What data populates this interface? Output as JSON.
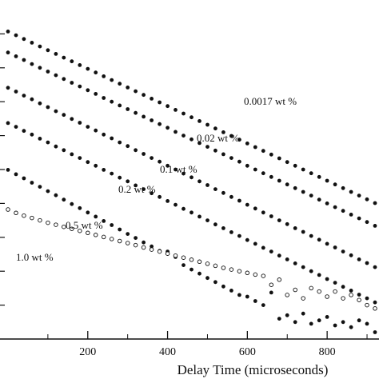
{
  "chart_data": {
    "type": "scatter",
    "title": "",
    "xlabel": "Delay Time (microseconds)",
    "ylabel": "",
    "xlim": [
      -20,
      930
    ],
    "ylim": [
      0,
      1
    ],
    "xticks": [
      200,
      400,
      600,
      800
    ],
    "xtick_labels": [
      "200",
      "400",
      "600",
      "800"
    ],
    "grid": false,
    "legend": "none",
    "series": [
      {
        "name": "0.0017 wt %",
        "marker": "filled",
        "points": [
          [
            0,
            0.907
          ],
          [
            20,
            0.896
          ],
          [
            40,
            0.885
          ],
          [
            60,
            0.874
          ],
          [
            80,
            0.863
          ],
          [
            100,
            0.852
          ],
          [
            120,
            0.841
          ],
          [
            140,
            0.83
          ],
          [
            160,
            0.819
          ],
          [
            180,
            0.808
          ],
          [
            200,
            0.797
          ],
          [
            220,
            0.786
          ],
          [
            240,
            0.775
          ],
          [
            260,
            0.764
          ],
          [
            280,
            0.753
          ],
          [
            300,
            0.742
          ],
          [
            320,
            0.731
          ],
          [
            340,
            0.72
          ],
          [
            360,
            0.709
          ],
          [
            380,
            0.698
          ],
          [
            400,
            0.687
          ],
          [
            420,
            0.676
          ],
          [
            440,
            0.665
          ],
          [
            460,
            0.654
          ],
          [
            480,
            0.643
          ],
          [
            500,
            0.632
          ],
          [
            520,
            0.621
          ],
          [
            540,
            0.61
          ],
          [
            560,
            0.599
          ],
          [
            580,
            0.588
          ],
          [
            600,
            0.577
          ],
          [
            620,
            0.566
          ],
          [
            640,
            0.555
          ],
          [
            660,
            0.544
          ],
          [
            680,
            0.533
          ],
          [
            700,
            0.522
          ],
          [
            720,
            0.511
          ],
          [
            740,
            0.5
          ],
          [
            760,
            0.489
          ],
          [
            780,
            0.478
          ],
          [
            800,
            0.467
          ],
          [
            820,
            0.456
          ],
          [
            840,
            0.445
          ],
          [
            860,
            0.434
          ],
          [
            880,
            0.423
          ],
          [
            900,
            0.412
          ],
          [
            920,
            0.401
          ]
        ]
      },
      {
        "name": "0.02 wt %",
        "marker": "filled",
        "points": [
          [
            0,
            0.845
          ],
          [
            20,
            0.834
          ],
          [
            40,
            0.823
          ],
          [
            60,
            0.811
          ],
          [
            80,
            0.8
          ],
          [
            100,
            0.789
          ],
          [
            120,
            0.778
          ],
          [
            140,
            0.767
          ],
          [
            160,
            0.756
          ],
          [
            180,
            0.745
          ],
          [
            200,
            0.734
          ],
          [
            220,
            0.723
          ],
          [
            240,
            0.711
          ],
          [
            260,
            0.7
          ],
          [
            280,
            0.689
          ],
          [
            300,
            0.678
          ],
          [
            320,
            0.667
          ],
          [
            340,
            0.656
          ],
          [
            360,
            0.645
          ],
          [
            380,
            0.634
          ],
          [
            400,
            0.623
          ],
          [
            420,
            0.611
          ],
          [
            440,
            0.6
          ],
          [
            460,
            0.589
          ],
          [
            480,
            0.578
          ],
          [
            500,
            0.567
          ],
          [
            520,
            0.556
          ],
          [
            540,
            0.545
          ],
          [
            560,
            0.534
          ],
          [
            580,
            0.523
          ],
          [
            600,
            0.511
          ],
          [
            620,
            0.5
          ],
          [
            640,
            0.489
          ],
          [
            660,
            0.478
          ],
          [
            680,
            0.467
          ],
          [
            700,
            0.456
          ],
          [
            720,
            0.445
          ],
          [
            740,
            0.434
          ],
          [
            760,
            0.423
          ],
          [
            780,
            0.411
          ],
          [
            800,
            0.4
          ],
          [
            820,
            0.389
          ],
          [
            840,
            0.378
          ],
          [
            860,
            0.367
          ],
          [
            880,
            0.356
          ],
          [
            900,
            0.345
          ],
          [
            920,
            0.334
          ]
        ]
      },
      {
        "name": "0.1 wt %",
        "marker": "filled",
        "points": [
          [
            0,
            0.741
          ],
          [
            20,
            0.73
          ],
          [
            40,
            0.718
          ],
          [
            60,
            0.707
          ],
          [
            80,
            0.695
          ],
          [
            100,
            0.684
          ],
          [
            120,
            0.672
          ],
          [
            140,
            0.661
          ],
          [
            160,
            0.649
          ],
          [
            180,
            0.638
          ],
          [
            200,
            0.626
          ],
          [
            220,
            0.615
          ],
          [
            240,
            0.603
          ],
          [
            260,
            0.592
          ],
          [
            280,
            0.58
          ],
          [
            300,
            0.569
          ],
          [
            320,
            0.557
          ],
          [
            340,
            0.546
          ],
          [
            360,
            0.534
          ],
          [
            380,
            0.523
          ],
          [
            400,
            0.511
          ],
          [
            420,
            0.5
          ],
          [
            440,
            0.488
          ],
          [
            460,
            0.477
          ],
          [
            480,
            0.465
          ],
          [
            500,
            0.454
          ],
          [
            520,
            0.442
          ],
          [
            540,
            0.431
          ],
          [
            560,
            0.419
          ],
          [
            580,
            0.408
          ],
          [
            600,
            0.396
          ],
          [
            620,
            0.385
          ],
          [
            640,
            0.373
          ],
          [
            660,
            0.362
          ],
          [
            680,
            0.35
          ],
          [
            700,
            0.339
          ],
          [
            720,
            0.327
          ],
          [
            740,
            0.316
          ],
          [
            760,
            0.304
          ],
          [
            780,
            0.293
          ],
          [
            800,
            0.281
          ],
          [
            820,
            0.27
          ],
          [
            840,
            0.258
          ],
          [
            860,
            0.247
          ],
          [
            880,
            0.235
          ],
          [
            900,
            0.224
          ],
          [
            920,
            0.212
          ]
        ]
      },
      {
        "name": "0.2 wt %",
        "marker": "filled",
        "points": [
          [
            0,
            0.637
          ],
          [
            20,
            0.626
          ],
          [
            40,
            0.614
          ],
          [
            60,
            0.603
          ],
          [
            80,
            0.591
          ],
          [
            100,
            0.58
          ],
          [
            120,
            0.568
          ],
          [
            140,
            0.557
          ],
          [
            160,
            0.545
          ],
          [
            180,
            0.534
          ],
          [
            200,
            0.522
          ],
          [
            220,
            0.511
          ],
          [
            240,
            0.499
          ],
          [
            260,
            0.488
          ],
          [
            280,
            0.476
          ],
          [
            300,
            0.465
          ],
          [
            320,
            0.453
          ],
          [
            340,
            0.442
          ],
          [
            360,
            0.43
          ],
          [
            380,
            0.419
          ],
          [
            400,
            0.407
          ],
          [
            420,
            0.396
          ],
          [
            440,
            0.384
          ],
          [
            460,
            0.373
          ],
          [
            480,
            0.361
          ],
          [
            500,
            0.35
          ],
          [
            520,
            0.338
          ],
          [
            540,
            0.327
          ],
          [
            560,
            0.315
          ],
          [
            580,
            0.304
          ],
          [
            600,
            0.292
          ],
          [
            620,
            0.281
          ],
          [
            640,
            0.269
          ],
          [
            660,
            0.258
          ],
          [
            680,
            0.246
          ],
          [
            700,
            0.235
          ],
          [
            720,
            0.223
          ],
          [
            740,
            0.212
          ],
          [
            760,
            0.2
          ],
          [
            780,
            0.189
          ],
          [
            800,
            0.177
          ],
          [
            820,
            0.166
          ],
          [
            840,
            0.154
          ],
          [
            860,
            0.143
          ],
          [
            880,
            0.131
          ],
          [
            900,
            0.12
          ],
          [
            920,
            0.108
          ]
        ]
      },
      {
        "name": "0.5 wt %",
        "marker": "filled",
        "points": [
          [
            0,
            0.499
          ],
          [
            20,
            0.486
          ],
          [
            40,
            0.474
          ],
          [
            60,
            0.461
          ],
          [
            80,
            0.449
          ],
          [
            100,
            0.436
          ],
          [
            120,
            0.424
          ],
          [
            140,
            0.411
          ],
          [
            160,
            0.398
          ],
          [
            180,
            0.386
          ],
          [
            200,
            0.373
          ],
          [
            220,
            0.361
          ],
          [
            240,
            0.348
          ],
          [
            260,
            0.336
          ],
          [
            280,
            0.323
          ],
          [
            300,
            0.31
          ],
          [
            320,
            0.298
          ],
          [
            340,
            0.285
          ],
          [
            360,
            0.273
          ],
          [
            380,
            0.26
          ],
          [
            400,
            0.258
          ],
          [
            420,
            0.242
          ],
          [
            440,
            0.218
          ],
          [
            460,
            0.205
          ],
          [
            480,
            0.193
          ],
          [
            500,
            0.18
          ],
          [
            520,
            0.168
          ],
          [
            540,
            0.155
          ],
          [
            560,
            0.143
          ],
          [
            580,
            0.13
          ],
          [
            600,
            0.125
          ],
          [
            620,
            0.112
          ],
          [
            640,
            0.1
          ],
          [
            660,
            0.137
          ],
          [
            680,
            0.06
          ],
          [
            700,
            0.07
          ],
          [
            720,
            0.05
          ],
          [
            740,
            0.075
          ],
          [
            760,
            0.045
          ],
          [
            780,
            0.055
          ],
          [
            800,
            0.065
          ],
          [
            820,
            0.04
          ],
          [
            840,
            0.05
          ],
          [
            860,
            0.035
          ],
          [
            880,
            0.055
          ],
          [
            900,
            0.045
          ],
          [
            920,
            0.02
          ]
        ]
      },
      {
        "name": "1.0 wt %",
        "marker": "open",
        "points": [
          [
            0,
            0.382
          ],
          [
            20,
            0.372
          ],
          [
            40,
            0.364
          ],
          [
            60,
            0.357
          ],
          [
            80,
            0.35
          ],
          [
            100,
            0.343
          ],
          [
            120,
            0.337
          ],
          [
            140,
            0.331
          ],
          [
            160,
            0.325
          ],
          [
            180,
            0.319
          ],
          [
            200,
            0.313
          ],
          [
            220,
            0.307
          ],
          [
            240,
            0.301
          ],
          [
            260,
            0.295
          ],
          [
            280,
            0.289
          ],
          [
            300,
            0.283
          ],
          [
            320,
            0.277
          ],
          [
            340,
            0.27
          ],
          [
            360,
            0.264
          ],
          [
            380,
            0.258
          ],
          [
            400,
            0.252
          ],
          [
            420,
            0.246
          ],
          [
            440,
            0.24
          ],
          [
            460,
            0.234
          ],
          [
            480,
            0.228
          ],
          [
            500,
            0.222
          ],
          [
            520,
            0.216
          ],
          [
            540,
            0.21
          ],
          [
            560,
            0.205
          ],
          [
            580,
            0.2
          ],
          [
            600,
            0.195
          ],
          [
            620,
            0.19
          ],
          [
            640,
            0.186
          ],
          [
            660,
            0.16
          ],
          [
            680,
            0.175
          ],
          [
            700,
            0.13
          ],
          [
            720,
            0.145
          ],
          [
            740,
            0.12
          ],
          [
            760,
            0.15
          ],
          [
            780,
            0.14
          ],
          [
            800,
            0.125
          ],
          [
            820,
            0.14
          ],
          [
            840,
            0.12
          ],
          [
            860,
            0.13
          ],
          [
            880,
            0.115
          ],
          [
            900,
            0.1
          ],
          [
            920,
            0.09
          ]
        ]
      }
    ]
  }
}
